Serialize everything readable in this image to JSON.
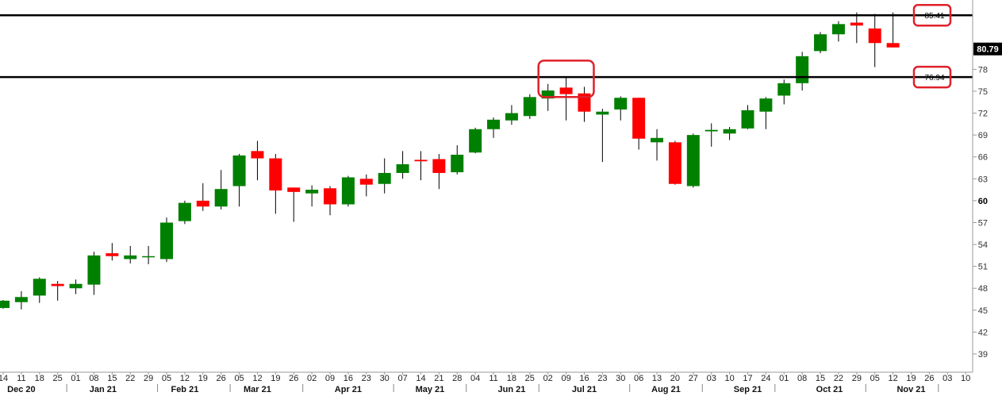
{
  "chart_data": {
    "type": "candlestick",
    "y_ticks": [
      39,
      42,
      45,
      48,
      51,
      54,
      57,
      60,
      63,
      66,
      69,
      72,
      75,
      78
    ],
    "y_bold_ticks": [
      60
    ],
    "ylim": [
      36.5,
      87.5
    ],
    "last_price": "80.79",
    "levels": [
      {
        "value": 85.41,
        "label": "85.41"
      },
      {
        "value": 76.94,
        "label": "76.94"
      }
    ],
    "colors": {
      "up": "#008000",
      "down": "#ff0000",
      "highlight": "#e0202a",
      "line": "#000000"
    },
    "date_ticks": [
      "14",
      "11",
      "18",
      "25",
      "01",
      "08",
      "15",
      "22",
      "29",
      "05",
      "12",
      "19",
      "26",
      "05",
      "12",
      "19",
      "26",
      "02",
      "09",
      "16",
      "23",
      "30",
      "07",
      "14",
      "21",
      "28",
      "04",
      "11",
      "18",
      "25",
      "02",
      "09",
      "16",
      "23",
      "30",
      "06",
      "13",
      "20",
      "27",
      "03",
      "10",
      "17",
      "24",
      "01",
      "08",
      "15",
      "22",
      "29",
      "05",
      "12",
      "19",
      "26",
      "03",
      "10"
    ],
    "month_labels": [
      {
        "label": "Dec 20",
        "index": 1
      },
      {
        "label": "Jan 21",
        "index": 5.5
      },
      {
        "label": "Feb 21",
        "index": 10
      },
      {
        "label": "Mar 21",
        "index": 14
      },
      {
        "label": "Apr 21",
        "index": 19
      },
      {
        "label": "May 21",
        "index": 23.5
      },
      {
        "label": "Jun 21",
        "index": 28
      },
      {
        "label": "Jul 21",
        "index": 32
      },
      {
        "label": "Aug 21",
        "index": 36.5
      },
      {
        "label": "Sep 21",
        "index": 41
      },
      {
        "label": "Oct 21",
        "index": 45.5
      },
      {
        "label": "Nov 21",
        "index": 50
      }
    ],
    "month_boundaries": [
      3.5,
      8.5,
      12.5,
      16.5,
      21.5,
      25.5,
      29.5,
      34.5,
      38.5,
      42.5,
      47.5,
      51.5
    ],
    "candles": [
      {
        "date": "14",
        "open": 45.3,
        "high": 46.4,
        "low": 45.2,
        "close": 46.3
      },
      {
        "date": "11",
        "open": 46.1,
        "high": 47.6,
        "low": 45.1,
        "close": 46.8
      },
      {
        "date": "18",
        "open": 47.0,
        "high": 49.5,
        "low": 46.0,
        "close": 49.3
      },
      {
        "date": "25",
        "open": 48.6,
        "high": 49.0,
        "low": 46.3,
        "close": 48.3
      },
      {
        "date": "01",
        "open": 48.0,
        "high": 49.2,
        "low": 47.2,
        "close": 48.6
      },
      {
        "date": "08",
        "open": 48.5,
        "high": 53.0,
        "low": 47.1,
        "close": 52.5
      },
      {
        "date": "15",
        "open": 52.8,
        "high": 54.2,
        "low": 51.8,
        "close": 52.4
      },
      {
        "date": "22",
        "open": 52.0,
        "high": 53.8,
        "low": 51.4,
        "close": 52.5
      },
      {
        "date": "29",
        "open": 52.3,
        "high": 53.8,
        "low": 51.3,
        "close": 52.4
      },
      {
        "date": "05",
        "open": 52.0,
        "high": 57.7,
        "low": 51.6,
        "close": 57.0
      },
      {
        "date": "12",
        "open": 57.2,
        "high": 60.0,
        "low": 56.8,
        "close": 59.7
      },
      {
        "date": "19",
        "open": 60.0,
        "high": 62.4,
        "low": 58.6,
        "close": 59.2
      },
      {
        "date": "26",
        "open": 59.2,
        "high": 64.2,
        "low": 58.8,
        "close": 61.6
      },
      {
        "date": "05",
        "open": 62.0,
        "high": 66.4,
        "low": 59.2,
        "close": 66.2
      },
      {
        "date": "12",
        "open": 66.8,
        "high": 68.2,
        "low": 62.8,
        "close": 65.8
      },
      {
        "date": "19",
        "open": 65.8,
        "high": 66.4,
        "low": 58.2,
        "close": 61.4
      },
      {
        "date": "26",
        "open": 61.8,
        "high": 61.8,
        "low": 57.1,
        "close": 61.2
      },
      {
        "date": "02",
        "open": 61.0,
        "high": 62.1,
        "low": 59.2,
        "close": 61.5
      },
      {
        "date": "09",
        "open": 61.7,
        "high": 62.0,
        "low": 58.0,
        "close": 59.5
      },
      {
        "date": "16",
        "open": 59.5,
        "high": 63.4,
        "low": 59.2,
        "close": 63.2
      },
      {
        "date": "23",
        "open": 63.0,
        "high": 63.6,
        "low": 60.6,
        "close": 62.2
      },
      {
        "date": "30",
        "open": 62.3,
        "high": 65.8,
        "low": 61.0,
        "close": 63.8
      },
      {
        "date": "07",
        "open": 63.8,
        "high": 66.8,
        "low": 63.0,
        "close": 65.0
      },
      {
        "date": "14",
        "open": 65.6,
        "high": 66.8,
        "low": 62.8,
        "close": 65.4
      },
      {
        "date": "21",
        "open": 65.7,
        "high": 66.4,
        "low": 61.6,
        "close": 63.8
      },
      {
        "date": "28",
        "open": 63.9,
        "high": 67.6,
        "low": 63.6,
        "close": 66.3
      },
      {
        "date": "04",
        "open": 66.6,
        "high": 70.0,
        "low": 66.5,
        "close": 69.8
      },
      {
        "date": "11",
        "open": 69.8,
        "high": 71.4,
        "low": 68.6,
        "close": 71.1
      },
      {
        "date": "18",
        "open": 71.0,
        "high": 73.1,
        "low": 70.4,
        "close": 72.0
      },
      {
        "date": "25",
        "open": 71.6,
        "high": 74.6,
        "low": 71.2,
        "close": 74.2
      },
      {
        "date": "02",
        "open": 74.0,
        "high": 76.0,
        "low": 72.3,
        "close": 75.1
      },
      {
        "date": "09",
        "open": 75.5,
        "high": 76.9,
        "low": 71.0,
        "close": 74.6
      },
      {
        "date": "16",
        "open": 74.7,
        "high": 75.6,
        "low": 70.8,
        "close": 72.2
      },
      {
        "date": "23",
        "open": 71.8,
        "high": 72.6,
        "low": 65.3,
        "close": 72.2
      },
      {
        "date": "30",
        "open": 72.5,
        "high": 74.3,
        "low": 71.0,
        "close": 74.1
      },
      {
        "date": "06",
        "open": 74.1,
        "high": 74.1,
        "low": 67.0,
        "close": 68.5
      },
      {
        "date": "13",
        "open": 68.0,
        "high": 69.8,
        "low": 65.5,
        "close": 68.6
      },
      {
        "date": "20",
        "open": 68.0,
        "high": 68.2,
        "low": 62.2,
        "close": 62.3
      },
      {
        "date": "27",
        "open": 62.0,
        "high": 69.2,
        "low": 61.8,
        "close": 69.0
      },
      {
        "date": "03",
        "open": 69.5,
        "high": 70.6,
        "low": 67.4,
        "close": 69.7
      },
      {
        "date": "10",
        "open": 69.2,
        "high": 70.1,
        "low": 68.3,
        "close": 69.8
      },
      {
        "date": "17",
        "open": 69.9,
        "high": 73.1,
        "low": 69.8,
        "close": 72.4
      },
      {
        "date": "24",
        "open": 72.2,
        "high": 74.2,
        "low": 69.8,
        "close": 74.0
      },
      {
        "date": "01",
        "open": 74.4,
        "high": 76.6,
        "low": 73.2,
        "close": 76.1
      },
      {
        "date": "08",
        "open": 76.1,
        "high": 80.4,
        "low": 75.1,
        "close": 79.8
      },
      {
        "date": "15",
        "open": 80.5,
        "high": 83.1,
        "low": 80.2,
        "close": 82.8
      },
      {
        "date": "22",
        "open": 82.8,
        "high": 84.6,
        "low": 81.8,
        "close": 84.2
      },
      {
        "date": "29",
        "open": 84.4,
        "high": 85.8,
        "low": 81.6,
        "close": 84.0
      },
      {
        "date": "05",
        "open": 83.6,
        "high": 85.6,
        "low": 78.3,
        "close": 81.6
      },
      {
        "date": "12",
        "open": 81.6,
        "high": 85.8,
        "low": 81.0,
        "close": 81.0
      },
      {
        "date": "19"
      },
      {
        "date": "26"
      },
      {
        "date": "03"
      },
      {
        "date": "10"
      }
    ],
    "highlight_boxes": [
      {
        "from_index": 30,
        "to_index": 32,
        "y_top": 79.2,
        "y_bottom": 74.2
      }
    ]
  }
}
